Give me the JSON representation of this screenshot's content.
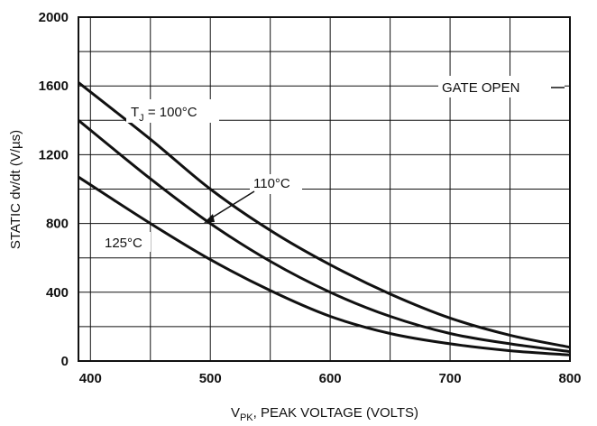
{
  "chart_data": {
    "type": "line",
    "xlabel": "V_PK, PEAK VOLTAGE (VOLTS)",
    "xlabel_main": "V",
    "xlabel_sub": "PK",
    "xlabel_rest": ", PEAK VOLTAGE (VOLTS)",
    "ylabel": "STATIC dv/dt (V/µs)",
    "xlim": [
      390,
      800
    ],
    "ylim": [
      0,
      2000
    ],
    "x_ticks": [
      400,
      500,
      600,
      700,
      800
    ],
    "x_tick_labels": [
      "400",
      "500",
      "600",
      "700",
      "800"
    ],
    "y_ticks": [
      0,
      400,
      800,
      1200,
      1600,
      2000
    ],
    "y_tick_labels": [
      "0",
      "400",
      "800",
      "1200",
      "1600",
      "2000"
    ],
    "grid": true,
    "series": [
      {
        "name": "TJ = 100°C",
        "x": [
          390,
          450,
          500,
          550,
          600,
          650,
          700,
          750,
          800
        ],
        "y": [
          1620,
          1290,
          1000,
          760,
          560,
          390,
          250,
          150,
          80
        ]
      },
      {
        "name": "110°C",
        "x": [
          390,
          450,
          500,
          550,
          600,
          650,
          700,
          750,
          800
        ],
        "y": [
          1400,
          1060,
          800,
          580,
          400,
          260,
          160,
          100,
          55
        ]
      },
      {
        "name": "125°C",
        "x": [
          390,
          450,
          500,
          550,
          600,
          650,
          700,
          750,
          800
        ],
        "y": [
          1070,
          800,
          590,
          410,
          260,
          160,
          100,
          60,
          35
        ]
      }
    ],
    "annotations": {
      "gate_open": "GATE OPEN",
      "t100_prefix": "T",
      "t100_sub": "J",
      "t100_rest": " = 100°C",
      "t110": "110°C",
      "t125": "125°C"
    }
  }
}
